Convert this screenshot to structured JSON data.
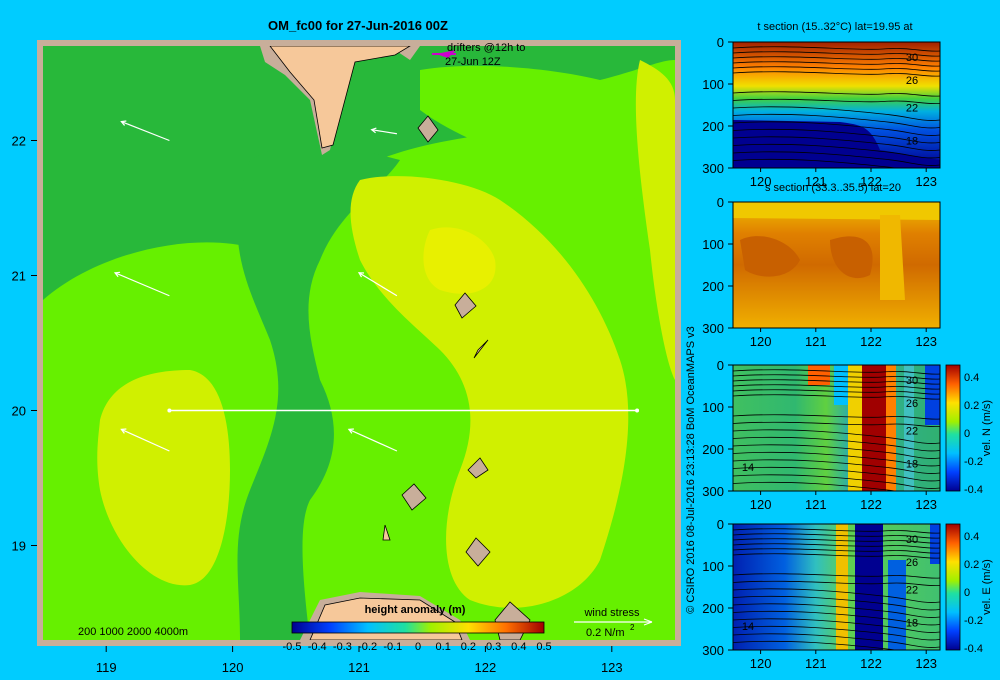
{
  "title": "OM_fc00 for 27-Jun-2016 00Z",
  "copyright": "© CSIRO 2016   08-Jul-2016 23:13:28 BoM OceanMAPS v3",
  "colors": {
    "background": "#00ccff",
    "frame": "#c8ae9a",
    "land": "#f6c89a",
    "arrow": "#ffffff",
    "drifter": "#cc00cc"
  },
  "map": {
    "drifters_label": [
      "drifters @12h to",
      "27-Jun 12Z"
    ],
    "depth_label": "200  1000  2000  4000m",
    "colorbar_title": "height anomaly (m)",
    "colorbar_ticks": [
      "-0.5",
      "-0.4",
      "-0.3",
      "-0.2",
      "-0.1",
      "0",
      "0.1",
      "0.2",
      "0.3",
      "0.4",
      "0.5"
    ],
    "wind_label": "wind stress",
    "wind_scale_label": "0.2 N/m",
    "wind_scale_sup": "2",
    "icons": [
      "wind-stress-arrow-icon",
      "drifter-icon"
    ]
  },
  "chart_data": [
    {
      "type": "heatmap",
      "title": "OM_fc00 for 27-Jun-2016 00Z",
      "xlabel": "",
      "ylabel": "",
      "xlim": [
        118.5,
        123.5
      ],
      "ylim": [
        18.3,
        22.7
      ],
      "x_ticks": [
        119,
        120,
        121,
        122,
        123
      ],
      "y_ticks": [
        19,
        20,
        21,
        22
      ],
      "colorbar": {
        "title": "height anomaly (m)",
        "range": [
          -0.5,
          0.5
        ]
      },
      "section_line": {
        "lat": 20,
        "lon": [
          119.5,
          123.2
        ]
      },
      "wind_arrows": [
        {
          "lon": 119.5,
          "lat": 22.0,
          "dx": -0.38,
          "dy": 0.14
        },
        {
          "lon": 121.3,
          "lat": 22.05,
          "dx": -0.2,
          "dy": 0.03
        },
        {
          "lon": 119.5,
          "lat": 20.85,
          "dx": -0.43,
          "dy": 0.17
        },
        {
          "lon": 121.3,
          "lat": 20.85,
          "dx": -0.3,
          "dy": 0.17
        },
        {
          "lon": 119.5,
          "lat": 19.7,
          "dx": -0.38,
          "dy": 0.16
        },
        {
          "lon": 121.3,
          "lat": 19.7,
          "dx": -0.38,
          "dy": 0.16
        }
      ]
    },
    {
      "type": "heatmap",
      "title": "t section (15..32°C) lat=19.95 at",
      "xlabel": "",
      "ylabel": "",
      "xlim": [
        119.5,
        123.25
      ],
      "ylim": [
        300,
        0
      ],
      "x_ticks": [
        120,
        121,
        122,
        123
      ],
      "y_ticks": [
        0,
        100,
        200,
        300
      ],
      "contour_labels": [
        "30",
        "26",
        "22",
        "18"
      ],
      "value_range": [
        15,
        32
      ]
    },
    {
      "type": "heatmap",
      "title": "s section (33.3..35.5) lat=20",
      "xlabel": "",
      "ylabel": "",
      "xlim": [
        119.5,
        123.25
      ],
      "ylim": [
        300,
        0
      ],
      "x_ticks": [
        120,
        121,
        122,
        123
      ],
      "y_ticks": [
        0,
        100,
        200,
        300
      ],
      "value_range": [
        33.3,
        35.5
      ]
    },
    {
      "type": "heatmap",
      "title": "",
      "xlabel": "",
      "ylabel": "vel. N (m/s)",
      "xlim": [
        119.5,
        123.25
      ],
      "ylim": [
        300,
        0
      ],
      "x_ticks": [
        120,
        121,
        122,
        123
      ],
      "y_ticks": [
        0,
        100,
        200,
        300
      ],
      "contour_labels": [
        "30",
        "26",
        "22",
        "18",
        "14"
      ],
      "colorbar_ticks": [
        "0.4",
        "0.2",
        "0",
        "-0.2",
        "-0.4"
      ],
      "value_range": [
        -0.4,
        0.4
      ]
    },
    {
      "type": "heatmap",
      "title": "",
      "xlabel": "",
      "ylabel": "vel. E (m/s)",
      "xlim": [
        119.5,
        123.25
      ],
      "ylim": [
        300,
        0
      ],
      "x_ticks": [
        120,
        121,
        122,
        123
      ],
      "y_ticks": [
        0,
        100,
        200,
        300
      ],
      "contour_labels": [
        "30",
        "26",
        "22",
        "18",
        "14"
      ],
      "colorbar_ticks": [
        "0.4",
        "0.2",
        "0",
        "-0.2",
        "-0.4"
      ],
      "value_range": [
        -0.4,
        0.4
      ]
    }
  ]
}
